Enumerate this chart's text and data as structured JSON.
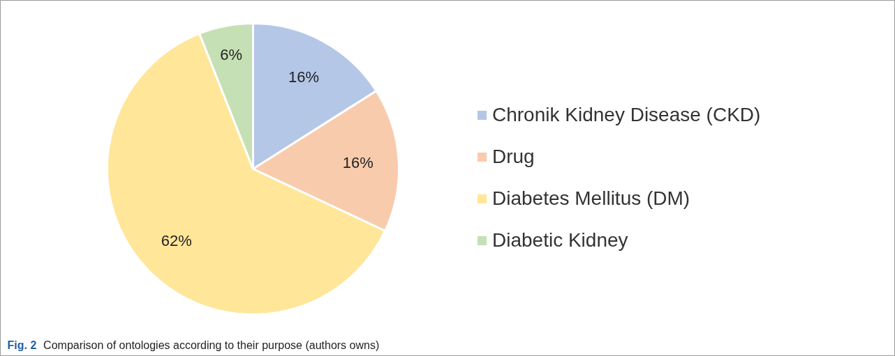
{
  "chart_data": {
    "type": "pie",
    "categories": [
      "Chronik Kidney Disease (CKD)",
      "Drug",
      "Diabetes Mellitus (DM)",
      "Diabetic Kidney"
    ],
    "values": [
      16,
      16,
      62,
      6
    ],
    "colors": [
      "#b4c7e7",
      "#f8cbad",
      "#ffe699",
      "#c5e0b4"
    ],
    "value_labels": [
      "16%",
      "16%",
      "62%",
      "6%"
    ],
    "legend": "right",
    "annotations": [
      "Fig. 2 Comparison of ontologies according to their purpose (authors owns)"
    ]
  }
}
